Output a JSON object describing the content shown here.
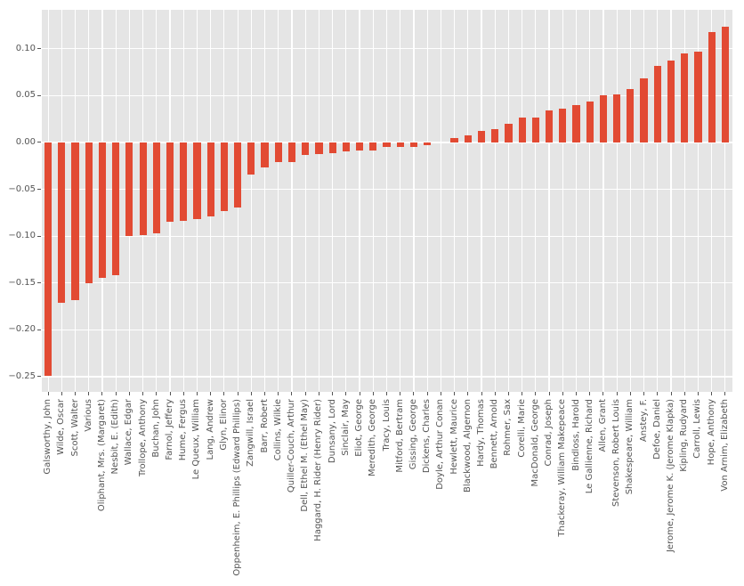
{
  "figure": {
    "background_color": "#ffffff",
    "axes_background_color": "#e5e5e5",
    "grid_color": "#ffffff",
    "tick_color": "#555555",
    "tick_label_color": "#555555"
  },
  "chart_data": {
    "type": "bar",
    "title": "",
    "xlabel": "",
    "ylabel": "",
    "bar_color": "#e24a33",
    "grid": true,
    "legend": false,
    "ylim": [
      -0.2665,
      0.1416
    ],
    "yticks": [
      0.1,
      0.05,
      0.0,
      -0.05,
      -0.1,
      -0.15,
      -0.2,
      -0.25
    ],
    "ytick_labels": [
      "0.10",
      "0.05",
      "0.00",
      "−0.05",
      "−0.10",
      "−0.15",
      "−0.20",
      "−0.25"
    ],
    "categories": [
      "Galsworthy, John",
      "Wilde, Oscar",
      "Scott, Walter",
      "Various",
      "Oliphant, Mrs. (Margaret)",
      "Nesbit, E. (Edith)",
      "Wallace, Edgar",
      "Trollope, Anthony",
      "Buchan, John",
      "Farnol, Jeffery",
      "Hume, Fergus",
      "Le Queux, William",
      "Lang, Andrew",
      "Glyn, Elinor",
      "Oppenheim, E. Phillips (Edward Phillips)",
      "Zangwill, Israel",
      "Barr, Robert",
      "Collins, Wilkie",
      "Quiller-Couch, Arthur",
      "Dell, Ethel M. (Ethel May)",
      "Haggard, H. Rider (Henry Rider)",
      "Dunsany, Lord",
      "Sinclair, May",
      "Eliot, George",
      "Meredith, George",
      "Tracy, Louis",
      "Mitford, Bertram",
      "Gissing, George",
      "Dickens, Charles",
      "Doyle, Arthur Conan",
      "Hewlett, Maurice",
      "Blackwood, Algernon",
      "Hardy, Thomas",
      "Bennett, Arnold",
      "Rohmer, Sax",
      "Corelli, Marie",
      "MacDonald, George",
      "Conrad, Joseph",
      "Thackeray, William Makepeace",
      "Bindloss, Harold",
      "Le Gallienne, Richard",
      "Allen, Grant",
      "Stevenson, Robert Louis",
      "Shakespeare, William",
      "Anstey, F.",
      "Defoe, Daniel",
      "Jerome, Jerome K. (Jerome Klapka)",
      "Kipling, Rudyard",
      "Carroll, Lewis",
      "Hope, Anthony",
      "Von Arnim, Elizabeth"
    ],
    "values": [
      -0.249,
      -0.171,
      -0.168,
      -0.15,
      -0.145,
      -0.142,
      -0.1,
      -0.099,
      -0.097,
      -0.085,
      -0.084,
      -0.082,
      -0.079,
      -0.073,
      -0.069,
      -0.034,
      -0.027,
      -0.021,
      -0.021,
      -0.013,
      -0.012,
      -0.011,
      -0.01,
      -0.009,
      -0.009,
      -0.005,
      -0.005,
      -0.005,
      -0.003,
      0.0,
      0.005,
      0.008,
      0.012,
      0.014,
      0.02,
      0.027,
      0.027,
      0.034,
      0.036,
      0.04,
      0.044,
      0.05,
      0.051,
      0.057,
      0.068,
      0.082,
      0.087,
      0.095,
      0.097,
      0.118,
      0.124
    ]
  }
}
